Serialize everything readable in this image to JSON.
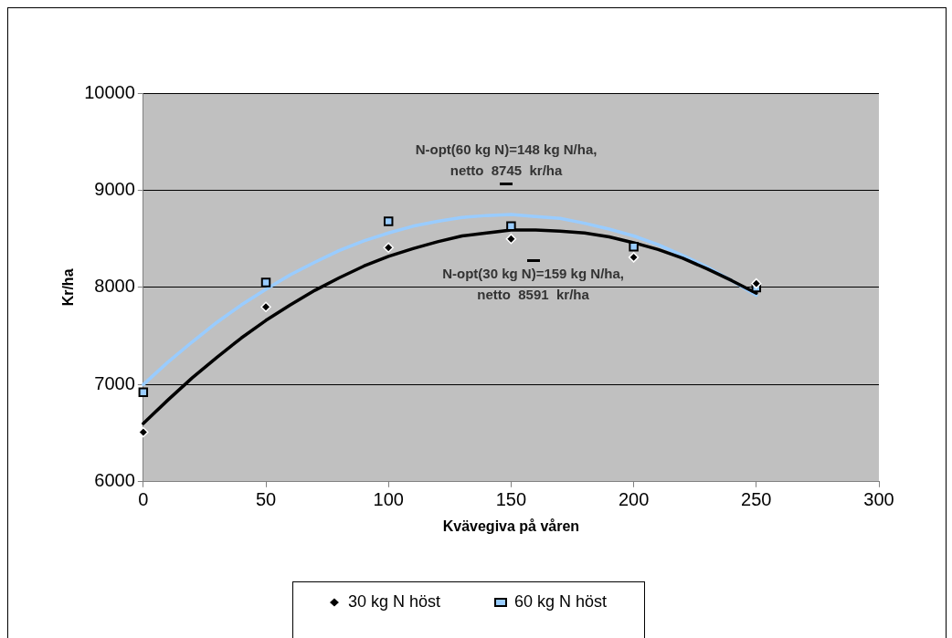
{
  "chart_data": {
    "type": "scatter",
    "xlabel": "Kvävegiva på våren",
    "ylabel": "Kr/ha",
    "xlim": [
      0,
      300
    ],
    "xticks": [
      0,
      50,
      100,
      150,
      200,
      250,
      300
    ],
    "ylim": [
      6000,
      10000
    ],
    "yticks": [
      6000,
      7000,
      8000,
      9000,
      10000
    ],
    "grid": "y",
    "legend": "bottom",
    "series": [
      {
        "name": "30 kg N höst",
        "marker": "diamond",
        "color": "#000000",
        "x": [
          0,
          50,
          100,
          150,
          200,
          250
        ],
        "values": [
          6510,
          7800,
          8410,
          8500,
          8310,
          8040
        ]
      },
      {
        "name": "60 kg N höst",
        "marker": "square",
        "color": "#99ccff",
        "x": [
          0,
          50,
          100,
          150,
          200,
          250
        ],
        "values": [
          6920,
          8050,
          8680,
          8630,
          8420,
          8000
        ]
      },
      {
        "type": "line",
        "marker": "none",
        "color": "#000000",
        "x": [
          0,
          10,
          20,
          30,
          40,
          50,
          60,
          70,
          80,
          90,
          100,
          110,
          120,
          130,
          140,
          150,
          160,
          170,
          180,
          190,
          200,
          210,
          220,
          230,
          240,
          250
        ],
        "values": [
          6600,
          6840,
          7070,
          7280,
          7480,
          7660,
          7820,
          7970,
          8100,
          8220,
          8320,
          8400,
          8470,
          8530,
          8560,
          8590,
          8590,
          8580,
          8560,
          8520,
          8460,
          8390,
          8300,
          8190,
          8070,
          7940
        ]
      },
      {
        "type": "line",
        "marker": "none",
        "color": "#99ccff",
        "x": [
          0,
          10,
          20,
          30,
          40,
          50,
          60,
          70,
          80,
          90,
          100,
          110,
          120,
          130,
          140,
          150,
          160,
          170,
          180,
          190,
          200,
          210,
          220,
          230,
          240,
          250
        ],
        "values": [
          7000,
          7230,
          7440,
          7640,
          7820,
          7980,
          8130,
          8260,
          8380,
          8480,
          8560,
          8630,
          8680,
          8720,
          8740,
          8750,
          8730,
          8710,
          8660,
          8600,
          8530,
          8440,
          8330,
          8210,
          8070,
          7920
        ]
      }
    ],
    "annotations": [
      {
        "text": "N-opt(60 kg N)=148 kg N/ha,\nnetto  8745  kr/ha",
        "x": 148,
        "y": 8745
      },
      {
        "text": "N-opt(30 kg N)=159 kg N/ha,\nnetto  8591  kr/ha",
        "x": 159,
        "y": 8591
      }
    ]
  }
}
